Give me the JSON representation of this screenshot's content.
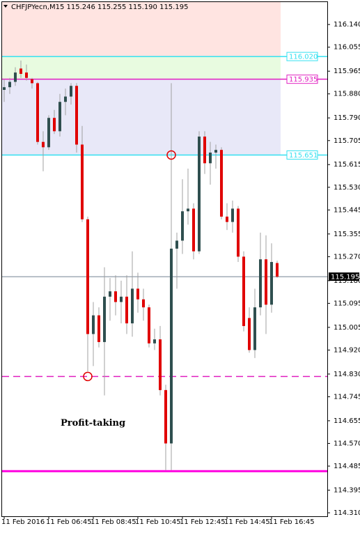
{
  "chart_data": {
    "type": "candlestick",
    "title": "CHFJPYecn,M15  115.246 115.255 115.190 115.195",
    "categories": [
      "11 Feb 2016",
      null,
      null,
      null,
      null,
      null,
      null,
      null,
      "11 Feb 06:45",
      null,
      null,
      null,
      null,
      null,
      null,
      null,
      "11 Feb 08:45",
      null,
      null,
      null,
      null,
      null,
      null,
      null,
      "11 Feb 10:45",
      null,
      null,
      null,
      null,
      null,
      null,
      null,
      "11 Feb 12:45",
      null,
      null,
      null,
      null,
      null,
      null,
      null,
      "11 Feb 14:45",
      null,
      null,
      null,
      null,
      null,
      null,
      null,
      "11 Feb 16:45",
      null
    ],
    "open": [
      115.895,
      115.905,
      115.925,
      115.975,
      115.96,
      115.935,
      115.92,
      115.7,
      115.68,
      115.79,
      115.74,
      115.85,
      115.87,
      115.91,
      115.69,
      115.41,
      114.98,
      115.05,
      114.95,
      115.12,
      115.14,
      115.1,
      115.12,
      115.02,
      115.15,
      115.11,
      115.08,
      114.945,
      114.96,
      114.77,
      114.57,
      115.3,
      115.33,
      115.44,
      115.45,
      115.29,
      115.72,
      115.62,
      115.66,
      115.67,
      115.42,
      115.4,
      115.45,
      115.27,
      115.04,
      114.92,
      115.08,
      115.26,
      115.09,
      115.246
    ],
    "high": [
      115.935,
      115.94,
      115.98,
      116.005,
      115.99,
      115.94,
      115.925,
      115.74,
      115.8,
      115.82,
      115.88,
      115.9,
      115.92,
      115.92,
      115.76,
      115.42,
      115.1,
      115.08,
      115.23,
      115.19,
      115.2,
      115.18,
      115.2,
      115.29,
      115.21,
      115.15,
      115.09,
      115.0,
      115.01,
      114.79,
      115.92,
      115.36,
      115.56,
      115.6,
      115.47,
      115.74,
      115.74,
      115.7,
      115.69,
      115.68,
      115.47,
      115.48,
      115.46,
      115.29,
      115.08,
      115.15,
      115.36,
      115.35,
      115.32,
      115.255
    ],
    "low": [
      115.85,
      115.88,
      115.91,
      115.94,
      115.93,
      115.9,
      115.69,
      115.59,
      115.67,
      115.73,
      115.72,
      115.8,
      115.84,
      115.66,
      115.4,
      114.84,
      114.86,
      114.93,
      114.75,
      115.03,
      115.05,
      115.02,
      114.98,
      114.97,
      115.06,
      115.03,
      114.93,
      114.92,
      114.75,
      114.47,
      114.47,
      115.15,
      115.28,
      115.39,
      115.26,
      115.28,
      115.58,
      115.54,
      115.6,
      115.41,
      115.37,
      115.36,
      115.25,
      114.99,
      114.91,
      114.89,
      115.05,
      114.98,
      115.06,
      115.19
    ],
    "close": [
      115.905,
      115.925,
      115.96,
      115.955,
      115.94,
      115.92,
      115.7,
      115.68,
      115.79,
      115.74,
      115.85,
      115.87,
      115.91,
      115.69,
      115.41,
      114.98,
      115.05,
      114.95,
      115.12,
      115.14,
      115.1,
      115.12,
      115.02,
      115.15,
      115.11,
      115.08,
      114.945,
      114.96,
      114.77,
      114.57,
      115.3,
      115.33,
      115.44,
      115.45,
      115.29,
      115.72,
      115.62,
      115.66,
      115.67,
      115.42,
      115.4,
      115.45,
      115.27,
      115.01,
      114.92,
      115.08,
      115.26,
      115.09,
      115.25,
      115.195
    ],
    "up_color": "#2f4f4f",
    "down_color": "#e00000",
    "ylim": [
      114.297,
      116.224
    ],
    "yticks": [
      {
        "value": 116.14,
        "label": "116.140"
      },
      {
        "value": 116.055,
        "label": "116.055"
      },
      {
        "value": 115.965,
        "label": "115.965"
      },
      {
        "value": 115.88,
        "label": "115.880"
      },
      {
        "value": 115.79,
        "label": "115.790"
      },
      {
        "value": 115.705,
        "label": "115.705"
      },
      {
        "value": 115.615,
        "label": "115.615"
      },
      {
        "value": 115.53,
        "label": "115.530"
      },
      {
        "value": 115.445,
        "label": "115.445"
      },
      {
        "value": 115.355,
        "label": "115.355"
      },
      {
        "value": 115.27,
        "label": "115.270"
      },
      {
        "value": 115.18,
        "label": "115.180"
      },
      {
        "value": 115.095,
        "label": "115.095"
      },
      {
        "value": 115.005,
        "label": "115.005"
      },
      {
        "value": 114.92,
        "label": "114.920"
      },
      {
        "value": 114.83,
        "label": "114.830"
      },
      {
        "value": 114.745,
        "label": "114.745"
      },
      {
        "value": 114.655,
        "label": "114.655"
      },
      {
        "value": 114.57,
        "label": "114.570"
      },
      {
        "value": 114.485,
        "label": "114.485"
      },
      {
        "value": 114.395,
        "label": "114.395"
      },
      {
        "value": 114.31,
        "label": "114.310"
      }
    ],
    "zones": [
      {
        "low": 116.02,
        "high": 116.224,
        "color": "#ffe4e1"
      },
      {
        "low": 115.935,
        "high": 116.02,
        "color": "#e8fbe0"
      },
      {
        "low": 115.651,
        "high": 115.935,
        "color": "#e8e8f8"
      }
    ],
    "levels": [
      {
        "value": 116.02,
        "label": "116.020",
        "color": "#33e0f0",
        "style": "solid"
      },
      {
        "value": 115.935,
        "label": "115.935",
        "color": "#e020c0",
        "style": "solid"
      },
      {
        "value": 115.651,
        "label": "115.651",
        "color": "#33e0f0",
        "style": "solid"
      },
      {
        "value": 114.821,
        "color": "#e020c0",
        "style": "dashed"
      },
      {
        "value": 114.466,
        "color": "#ff00e0",
        "style": "thick"
      }
    ],
    "current_price": {
      "value": 115.195,
      "label": "115.195"
    },
    "markers": [
      {
        "index": 30,
        "value": 115.651
      },
      {
        "index": 15,
        "value": 114.821
      }
    ],
    "annotations": [
      {
        "text": "Profit-taking",
        "index": 11,
        "value": 114.645
      }
    ]
  }
}
